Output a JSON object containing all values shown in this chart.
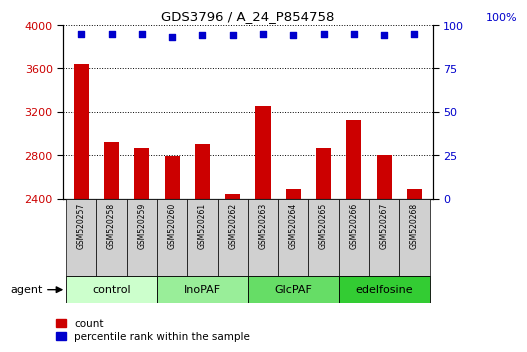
{
  "title": "GDS3796 / A_24_P854758",
  "samples": [
    "GSM520257",
    "GSM520258",
    "GSM520259",
    "GSM520260",
    "GSM520261",
    "GSM520262",
    "GSM520263",
    "GSM520264",
    "GSM520265",
    "GSM520266",
    "GSM520267",
    "GSM520268"
  ],
  "bar_values": [
    3640,
    2920,
    2870,
    2790,
    2900,
    2440,
    3250,
    2490,
    2870,
    3120,
    2800,
    2490
  ],
  "percentile_values": [
    95,
    95,
    95,
    93,
    94,
    94,
    95,
    94,
    95,
    95,
    94,
    95
  ],
  "bar_color": "#cc0000",
  "dot_color": "#0000cc",
  "ylim_left": [
    2400,
    4000
  ],
  "ylim_right": [
    0,
    100
  ],
  "yticks_left": [
    2400,
    2800,
    3200,
    3600,
    4000
  ],
  "yticks_right": [
    0,
    25,
    50,
    75,
    100
  ],
  "grid_color": "#000000",
  "agent_groups": [
    {
      "label": "control",
      "start": 0,
      "end": 3,
      "color": "#ccffcc"
    },
    {
      "label": "InoPAF",
      "start": 3,
      "end": 6,
      "color": "#99ee99"
    },
    {
      "label": "GlcPAF",
      "start": 6,
      "end": 9,
      "color": "#66dd66"
    },
    {
      "label": "edelfosine",
      "start": 9,
      "end": 12,
      "color": "#33cc33"
    }
  ],
  "agent_label": "agent",
  "legend_count_color": "#cc0000",
  "legend_dot_color": "#0000cc",
  "legend_count_label": "count",
  "legend_dot_label": "percentile rank within the sample",
  "bar_width": 0.5,
  "background_color": "#ffffff",
  "xtick_bg_color": "#d0d0d0",
  "top_label_100pct": "100%"
}
